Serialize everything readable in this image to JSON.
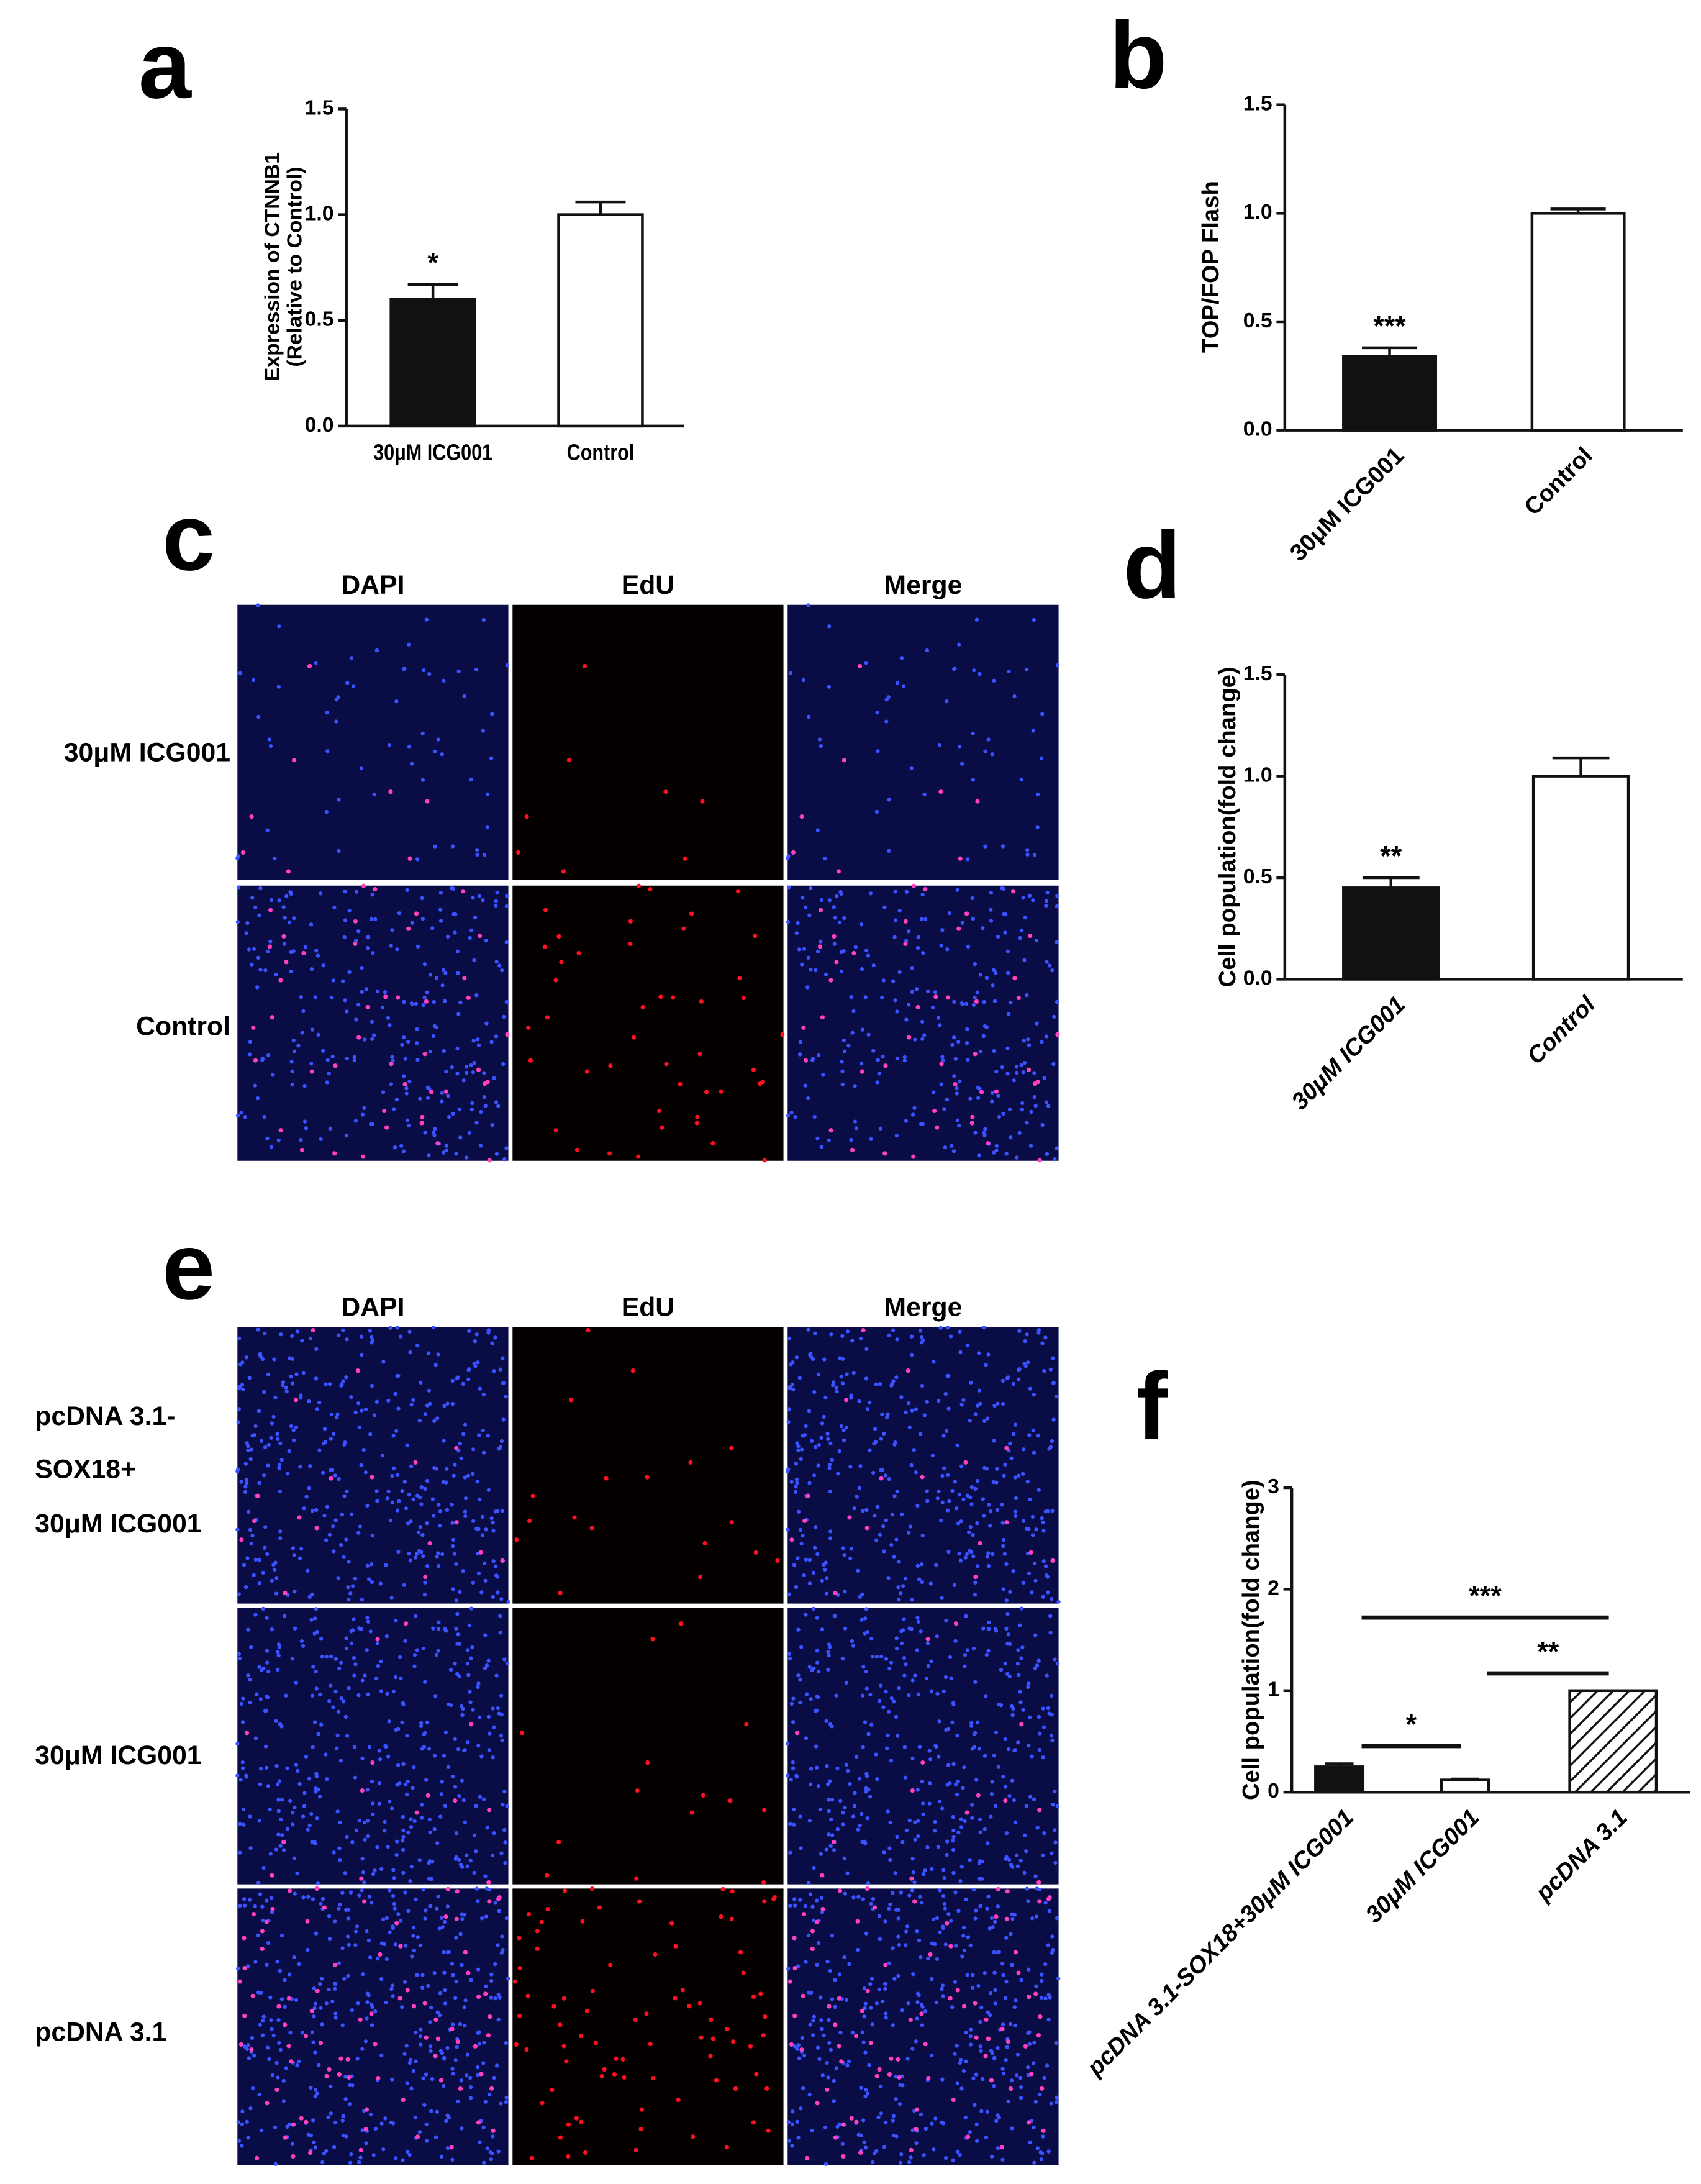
{
  "panel_letters": [
    "a",
    "b",
    "c",
    "d",
    "e",
    "f"
  ],
  "chart_data": [
    {
      "type": "bar",
      "ylabel": [
        "Expression of CTNNB1",
        "(Relative to Control)"
      ],
      "categories": [
        "30μM ICG001",
        "Control"
      ],
      "values": [
        0.6,
        1.0
      ],
      "errors": [
        0.07,
        0.06
      ],
      "colors": [
        "#111111",
        "#ffffff"
      ],
      "patterns": [
        "solid",
        "solid"
      ],
      "ylim": [
        0,
        1.5
      ],
      "yticks": [
        {
          "value": 0,
          "label": "0.0"
        },
        {
          "value": 0.5,
          "label": "0.5"
        },
        {
          "value": 1,
          "label": "1.0"
        },
        {
          "value": 1.5,
          "label": "1.5"
        }
      ],
      "annotations": [
        {
          "text": "*",
          "x": "30μM ICG001"
        }
      ]
    },
    {
      "type": "bar",
      "ylabel": "TOP/FOP Flash",
      "categories": [
        "30μM ICG001",
        "Control"
      ],
      "values": [
        0.34,
        1.0
      ],
      "errors": [
        0.04,
        0.02
      ],
      "colors": [
        "#111111",
        "#ffffff"
      ],
      "patterns": [
        "solid",
        "solid"
      ],
      "ylim": [
        0,
        1.5
      ],
      "yticks": [
        {
          "value": 0,
          "label": "0.0"
        },
        {
          "value": 0.5,
          "label": "0.5"
        },
        {
          "value": 1,
          "label": "1.0"
        },
        {
          "value": 1.5,
          "label": "1.5"
        }
      ],
      "annotations": [
        {
          "text": "***",
          "x": "30μM ICG001"
        }
      ]
    },
    {
      "type": "bar",
      "ylabel": "Cell population(fold change)",
      "italic_labels": true,
      "categories": [
        "30μM ICG001",
        "Control"
      ],
      "values": [
        0.45,
        1.0
      ],
      "errors": [
        0.05,
        0.09
      ],
      "colors": [
        "#111111",
        "#ffffff"
      ],
      "patterns": [
        "solid",
        "solid"
      ],
      "ylim": [
        0,
        1.5
      ],
      "yticks": [
        {
          "value": 0,
          "label": "0.0"
        },
        {
          "value": 0.5,
          "label": "0.5"
        },
        {
          "value": 1,
          "label": "1.0"
        },
        {
          "value": 1.5,
          "label": "1.5"
        }
      ],
      "annotations": [
        {
          "text": "**",
          "x": "30μM ICG001"
        }
      ]
    },
    {
      "type": "bar",
      "ylabel": "Cell population(fold change)",
      "italic_labels": true,
      "categories": [
        "pcDNA 3.1-SOX18+30μM ICG001",
        "30μM ICG001",
        "pcDNA 3.1"
      ],
      "values": [
        0.25,
        0.12,
        1.0
      ],
      "errors": [
        0.03,
        0.01,
        null
      ],
      "colors": [
        "#111111",
        "#ffffff",
        "#ffffff"
      ],
      "patterns": [
        "solid",
        "solid",
        "hatch"
      ],
      "ylim": [
        0,
        3
      ],
      "yticks": [
        0,
        1,
        2,
        3
      ],
      "brackets": [
        {
          "text": "***",
          "from": "pcDNA 3.1-SOX18+30μM ICG001",
          "to": "pcDNA 3.1"
        },
        {
          "text": "**",
          "from": "30μM ICG001",
          "to": "pcDNA 3.1"
        },
        {
          "text": "*",
          "from": "pcDNA 3.1-SOX18+30μM ICG001",
          "to": "30μM ICG001"
        }
      ]
    }
  ],
  "image_grids": [
    {
      "columns": [
        "DAPI",
        "EdU",
        "Merge"
      ],
      "rows": [
        [
          "30μM ICG001"
        ],
        [
          "Control"
        ]
      ]
    },
    {
      "columns": [
        "DAPI",
        "EdU",
        "Merge"
      ],
      "rows": [
        [
          "pcDNA 3.1-",
          "SOX18+",
          "30μM ICG001"
        ],
        [
          "30μM ICG001"
        ],
        [
          "pcDNA 3.1"
        ]
      ]
    }
  ]
}
